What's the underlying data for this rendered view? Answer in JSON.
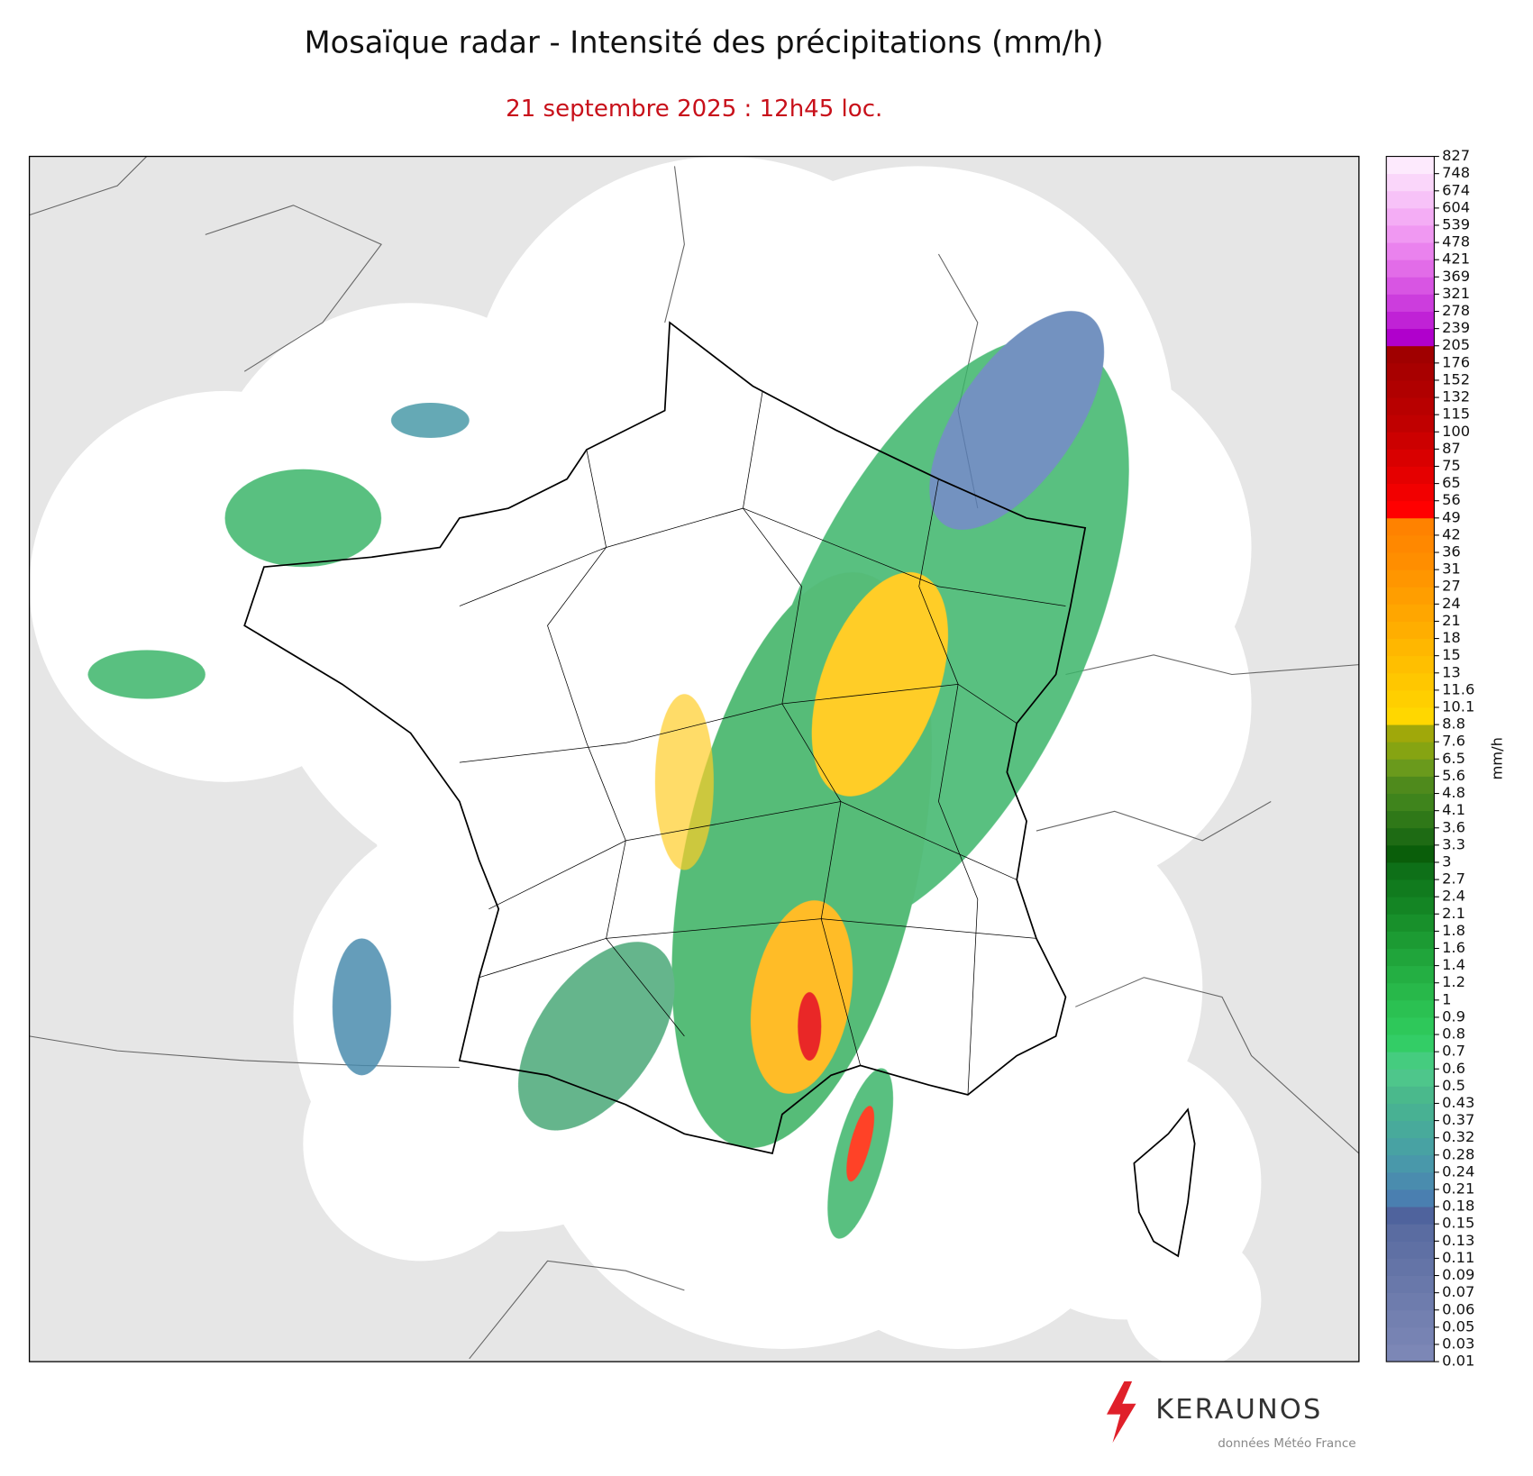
{
  "header": {
    "title": "Mosaïque radar - Intensité des précipitations (mm/h)",
    "subtitle": "21 septembre 2025 : 12h45 loc."
  },
  "colorbar": {
    "label": "mm/h",
    "ticks": [
      0.01,
      0.03,
      0.05,
      0.06,
      0.07,
      0.09,
      0.11,
      0.13,
      0.15,
      0.18,
      0.21,
      0.24,
      0.28,
      0.32,
      0.37,
      0.43,
      0.5,
      0.6,
      0.7,
      0.8,
      0.9,
      1,
      1.2,
      1.4,
      1.6,
      1.8,
      2.1,
      2.4,
      2.7,
      3,
      3.3,
      3.6,
      4.1,
      4.8,
      5.6,
      6.5,
      7.6,
      8.8,
      10.1,
      11.6,
      13,
      15,
      18,
      21,
      24,
      27,
      31,
      36,
      42,
      49,
      56,
      65,
      75,
      87,
      100,
      115,
      132,
      152,
      176,
      205,
      239,
      278,
      321,
      369,
      421,
      478,
      539,
      604,
      674,
      748,
      827
    ],
    "colors": [
      "#7c87b6",
      "#7783b3",
      "#7380b0",
      "#6e7cad",
      "#6978aa",
      "#6474a7",
      "#5f70a4",
      "#5a6ca1",
      "#4f639d",
      "#4a7fb0",
      "#4a8cae",
      "#4998aa",
      "#48a2a3",
      "#48aa9b",
      "#48b193",
      "#4ab98c",
      "#4ec68b",
      "#45cc7f",
      "#33cd66",
      "#2ec85a",
      "#2bc152",
      "#28b84a",
      "#24af43",
      "#20a53b",
      "#1c9b33",
      "#18902b",
      "#148524",
      "#117b1e",
      "#0e7018",
      "#0a5e0a",
      "#1e6b14",
      "#2f7818",
      "#3f841c",
      "#4f8a1c",
      "#6a9a1c",
      "#86a412",
      "#a0a80a",
      "#ffd700",
      "#ffcf00",
      "#ffc700",
      "#ffbf00",
      "#ffb700",
      "#ffae00",
      "#ffa600",
      "#ff9e00",
      "#ff9600",
      "#ff8e00",
      "#ff8800",
      "#ff8200",
      "#ff0000",
      "#f20000",
      "#e50000",
      "#d90000",
      "#cc0000",
      "#c00000",
      "#b80000",
      "#b00000",
      "#a80000",
      "#a00000",
      "#b000cc",
      "#c022d6",
      "#cc3ddd",
      "#d855e3",
      "#e26ce8",
      "#ea82ee",
      "#f098f2",
      "#f4adf5",
      "#f7c2f8",
      "#fad6fa",
      "#fdeafd"
    ]
  },
  "logo": {
    "brand": "KERAUNOS",
    "credit": "données Météo France"
  }
}
